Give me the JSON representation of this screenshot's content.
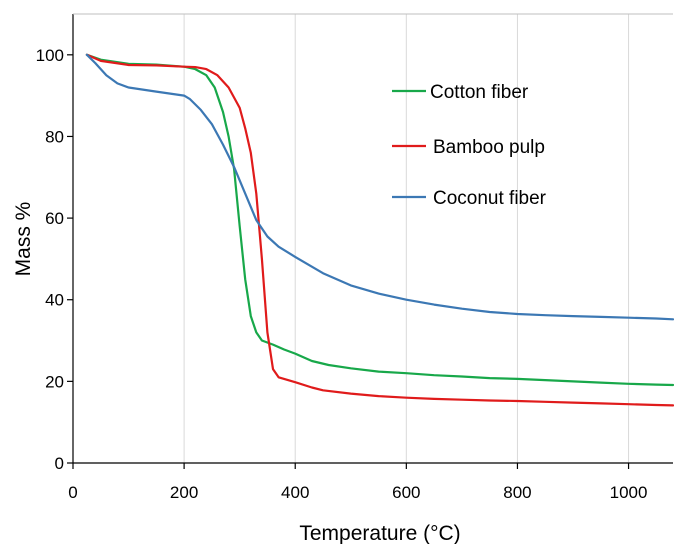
{
  "chart_data": {
    "type": "line",
    "title": "",
    "xlabel": "Temperature (°C)",
    "ylabel": "Mass %",
    "xlim": [
      0,
      1080
    ],
    "ylim": [
      0,
      110
    ],
    "xticks": [
      0,
      200,
      400,
      600,
      800,
      1000
    ],
    "yticks": [
      0,
      20,
      40,
      60,
      80,
      100
    ],
    "grid": "vertical",
    "legend_position": "right",
    "series": [
      {
        "name": "Cotton fiber",
        "color": "#18a84a",
        "points": [
          [
            25,
            100
          ],
          [
            50,
            98.8
          ],
          [
            100,
            97.8
          ],
          [
            150,
            97.6
          ],
          [
            200,
            97.1
          ],
          [
            220,
            96.5
          ],
          [
            240,
            95
          ],
          [
            255,
            92
          ],
          [
            270,
            86
          ],
          [
            280,
            80
          ],
          [
            290,
            72
          ],
          [
            300,
            58
          ],
          [
            310,
            45
          ],
          [
            320,
            36
          ],
          [
            330,
            32
          ],
          [
            340,
            30
          ],
          [
            360,
            29
          ],
          [
            380,
            27.8
          ],
          [
            400,
            26.8
          ],
          [
            430,
            25
          ],
          [
            460,
            24
          ],
          [
            500,
            23.2
          ],
          [
            550,
            22.4
          ],
          [
            600,
            22
          ],
          [
            650,
            21.5
          ],
          [
            700,
            21.2
          ],
          [
            750,
            20.8
          ],
          [
            800,
            20.6
          ],
          [
            850,
            20.3
          ],
          [
            900,
            20
          ],
          [
            950,
            19.7
          ],
          [
            1000,
            19.4
          ],
          [
            1050,
            19.2
          ],
          [
            1080,
            19.1
          ]
        ]
      },
      {
        "name": "Bamboo pulp",
        "color": "#e01b1b",
        "points": [
          [
            25,
            100
          ],
          [
            50,
            98.5
          ],
          [
            100,
            97.5
          ],
          [
            150,
            97.4
          ],
          [
            200,
            97.1
          ],
          [
            220,
            97
          ],
          [
            240,
            96.5
          ],
          [
            260,
            95
          ],
          [
            280,
            92
          ],
          [
            300,
            87
          ],
          [
            310,
            82
          ],
          [
            320,
            76
          ],
          [
            330,
            66
          ],
          [
            340,
            50
          ],
          [
            350,
            32
          ],
          [
            360,
            23
          ],
          [
            370,
            21
          ],
          [
            400,
            19.8
          ],
          [
            430,
            18.5
          ],
          [
            450,
            17.8
          ],
          [
            500,
            17
          ],
          [
            550,
            16.4
          ],
          [
            600,
            16
          ],
          [
            650,
            15.7
          ],
          [
            700,
            15.5
          ],
          [
            750,
            15.3
          ],
          [
            800,
            15.2
          ],
          [
            850,
            15
          ],
          [
            900,
            14.8
          ],
          [
            950,
            14.6
          ],
          [
            1000,
            14.4
          ],
          [
            1050,
            14.2
          ],
          [
            1080,
            14.1
          ]
        ]
      },
      {
        "name": "Coconut fiber",
        "color": "#3c78b4",
        "points": [
          [
            25,
            100
          ],
          [
            40,
            98
          ],
          [
            60,
            95
          ],
          [
            80,
            93
          ],
          [
            100,
            92
          ],
          [
            150,
            91
          ],
          [
            200,
            90
          ],
          [
            210,
            89.2
          ],
          [
            230,
            86.5
          ],
          [
            250,
            83
          ],
          [
            270,
            78
          ],
          [
            290,
            72.5
          ],
          [
            310,
            66
          ],
          [
            330,
            59.5
          ],
          [
            350,
            55.5
          ],
          [
            370,
            53
          ],
          [
            400,
            50.5
          ],
          [
            450,
            46.5
          ],
          [
            500,
            43.5
          ],
          [
            550,
            41.5
          ],
          [
            600,
            40
          ],
          [
            650,
            38.8
          ],
          [
            700,
            37.8
          ],
          [
            750,
            37
          ],
          [
            800,
            36.5
          ],
          [
            850,
            36.2
          ],
          [
            900,
            36
          ],
          [
            950,
            35.8
          ],
          [
            1000,
            35.6
          ],
          [
            1050,
            35.4
          ],
          [
            1080,
            35.2
          ]
        ]
      }
    ]
  }
}
